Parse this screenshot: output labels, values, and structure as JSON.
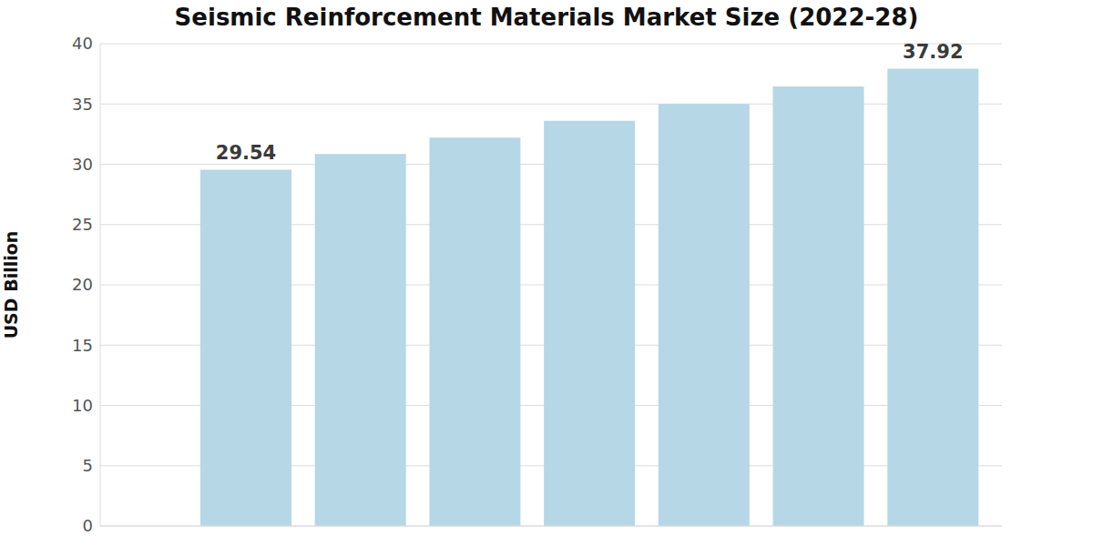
{
  "chart_data": {
    "type": "bar",
    "title": "Seismic Reinforcement Materials Market Size (2022-28)",
    "y_label": "USD Billion",
    "categories": [
      null,
      null,
      null,
      null,
      null,
      null,
      null
    ],
    "values": [
      29.54,
      30.85,
      32.2,
      33.6,
      35.0,
      36.45,
      37.92
    ],
    "value_labels": [
      "29.54",
      null,
      null,
      null,
      null,
      null,
      "37.92"
    ],
    "data_labels": true,
    "color": "#b5d7e6",
    "ylim": [
      0,
      40
    ],
    "yticks": [
      0,
      5,
      10,
      15,
      20,
      25,
      30,
      35,
      40
    ],
    "grid": true
  }
}
